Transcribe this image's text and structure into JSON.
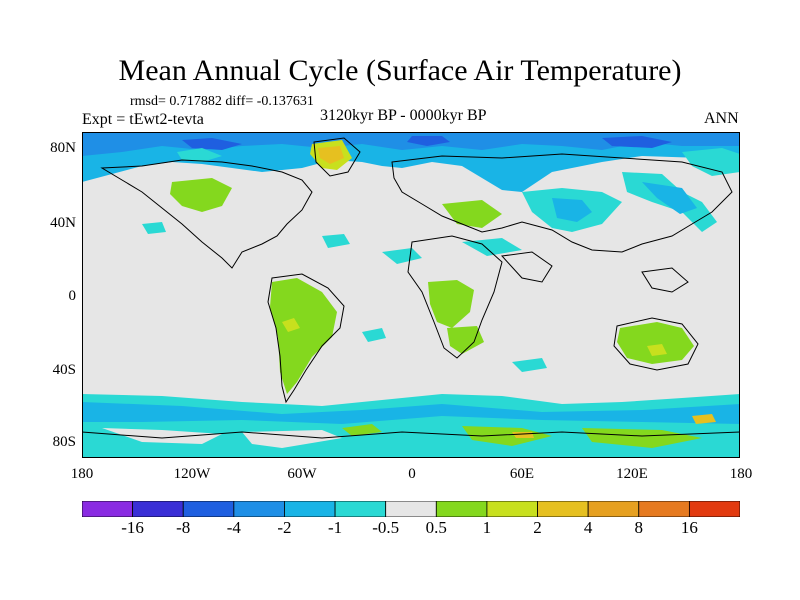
{
  "title": "Mean Annual Cycle (Surface Air Temperature)",
  "stats": "rmsd= 0.717882 diff= -0.137631",
  "experiment": "Expt = tEwt2-tevta",
  "period": "3120kyr BP - 0000kyr BP",
  "season": "ANN",
  "lat_labels": [
    "80N",
    "40N",
    "0",
    "40S",
    "80S"
  ],
  "lon_labels": [
    "180",
    "120W",
    "60W",
    "0",
    "60E",
    "120E",
    "180"
  ],
  "colorbar": {
    "labels": [
      "-16",
      "-8",
      "-4",
      "-2",
      "-1",
      "-0.5",
      "0.5",
      "1",
      "2",
      "4",
      "8",
      "16"
    ],
    "colors": [
      "#8a2be2",
      "#3a2fd6",
      "#1f5fe0",
      "#1f8fe6",
      "#19b4e6",
      "#2ad9d4",
      "#e6e6e6",
      "#84d81e",
      "#c8e01e",
      "#e6c020",
      "#e6a020",
      "#e67a20",
      "#e23a10"
    ]
  }
}
